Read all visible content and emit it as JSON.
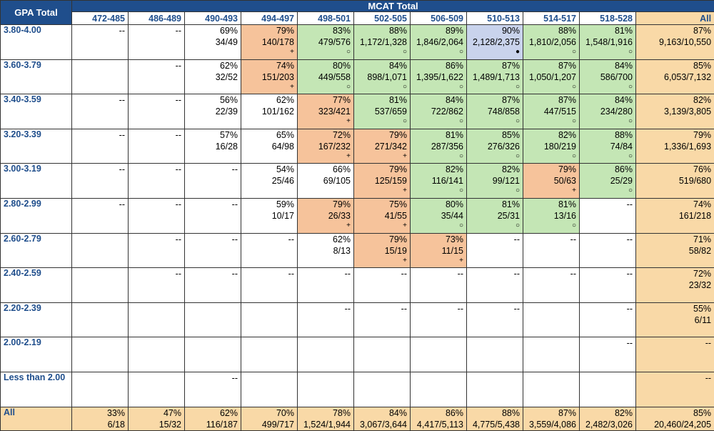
{
  "header": {
    "gpa_title": "GPA Total",
    "mcat_title": "MCAT Total",
    "columns": [
      "472-485",
      "486-489",
      "490-493",
      "494-497",
      "498-501",
      "502-505",
      "506-509",
      "510-513",
      "514-517",
      "518-528",
      "All"
    ]
  },
  "colors": {
    "header": "#1f4e8c",
    "high": "#c4e6b5",
    "mid": "#f6c39b",
    "top": "#c9d3ec",
    "total": "#f9d9a7"
  },
  "rows": [
    {
      "label": "3.80-4.00",
      "cells": [
        {
          "pct": "--",
          "frac": "",
          "marker": "",
          "tone": "plain"
        },
        {
          "pct": "--",
          "frac": "",
          "marker": "",
          "tone": "plain"
        },
        {
          "pct": "69%",
          "frac": "34/49",
          "marker": "",
          "tone": "plain"
        },
        {
          "pct": "79%",
          "frac": "140/178",
          "marker": "+",
          "tone": "mid"
        },
        {
          "pct": "83%",
          "frac": "479/576",
          "marker": "○",
          "tone": "hi"
        },
        {
          "pct": "88%",
          "frac": "1,172/1,328",
          "marker": "○",
          "tone": "hi"
        },
        {
          "pct": "89%",
          "frac": "1,846/2,064",
          "marker": "○",
          "tone": "hi"
        },
        {
          "pct": "90%",
          "frac": "2,128/2,375",
          "marker": "●",
          "tone": "top"
        },
        {
          "pct": "88%",
          "frac": "1,810/2,056",
          "marker": "○",
          "tone": "hi"
        },
        {
          "pct": "81%",
          "frac": "1,548/1,916",
          "marker": "○",
          "tone": "hi"
        },
        {
          "pct": "87%",
          "frac": "9,163/10,550",
          "marker": "",
          "tone": "tot"
        }
      ]
    },
    {
      "label": "3.60-3.79",
      "cells": [
        {
          "pct": "",
          "frac": "",
          "marker": "",
          "tone": "plain"
        },
        {
          "pct": "--",
          "frac": "",
          "marker": "",
          "tone": "plain"
        },
        {
          "pct": "62%",
          "frac": "32/52",
          "marker": "",
          "tone": "plain"
        },
        {
          "pct": "74%",
          "frac": "151/203",
          "marker": "+",
          "tone": "mid"
        },
        {
          "pct": "80%",
          "frac": "449/558",
          "marker": "○",
          "tone": "hi"
        },
        {
          "pct": "84%",
          "frac": "898/1,071",
          "marker": "○",
          "tone": "hi"
        },
        {
          "pct": "86%",
          "frac": "1,395/1,622",
          "marker": "○",
          "tone": "hi"
        },
        {
          "pct": "87%",
          "frac": "1,489/1,713",
          "marker": "○",
          "tone": "hi"
        },
        {
          "pct": "87%",
          "frac": "1,050/1,207",
          "marker": "○",
          "tone": "hi"
        },
        {
          "pct": "84%",
          "frac": "586/700",
          "marker": "○",
          "tone": "hi"
        },
        {
          "pct": "85%",
          "frac": "6,053/7,132",
          "marker": "",
          "tone": "tot"
        }
      ]
    },
    {
      "label": "3.40-3.59",
      "cells": [
        {
          "pct": "--",
          "frac": "",
          "marker": "",
          "tone": "plain"
        },
        {
          "pct": "--",
          "frac": "",
          "marker": "",
          "tone": "plain"
        },
        {
          "pct": "56%",
          "frac": "22/39",
          "marker": "",
          "tone": "plain"
        },
        {
          "pct": "62%",
          "frac": "101/162",
          "marker": "",
          "tone": "plain"
        },
        {
          "pct": "77%",
          "frac": "323/421",
          "marker": "+",
          "tone": "mid"
        },
        {
          "pct": "81%",
          "frac": "537/659",
          "marker": "○",
          "tone": "hi"
        },
        {
          "pct": "84%",
          "frac": "722/862",
          "marker": "○",
          "tone": "hi"
        },
        {
          "pct": "87%",
          "frac": "748/858",
          "marker": "○",
          "tone": "hi"
        },
        {
          "pct": "87%",
          "frac": "447/515",
          "marker": "○",
          "tone": "hi"
        },
        {
          "pct": "84%",
          "frac": "234/280",
          "marker": "○",
          "tone": "hi"
        },
        {
          "pct": "82%",
          "frac": "3,139/3,805",
          "marker": "",
          "tone": "tot"
        }
      ]
    },
    {
      "label": "3.20-3.39",
      "cells": [
        {
          "pct": "--",
          "frac": "",
          "marker": "",
          "tone": "plain"
        },
        {
          "pct": "--",
          "frac": "",
          "marker": "",
          "tone": "plain"
        },
        {
          "pct": "57%",
          "frac": "16/28",
          "marker": "",
          "tone": "plain"
        },
        {
          "pct": "65%",
          "frac": "64/98",
          "marker": "",
          "tone": "plain"
        },
        {
          "pct": "72%",
          "frac": "167/232",
          "marker": "+",
          "tone": "mid"
        },
        {
          "pct": "79%",
          "frac": "271/342",
          "marker": "+",
          "tone": "mid"
        },
        {
          "pct": "81%",
          "frac": "287/356",
          "marker": "○",
          "tone": "hi"
        },
        {
          "pct": "85%",
          "frac": "276/326",
          "marker": "○",
          "tone": "hi"
        },
        {
          "pct": "82%",
          "frac": "180/219",
          "marker": "○",
          "tone": "hi"
        },
        {
          "pct": "88%",
          "frac": "74/84",
          "marker": "○",
          "tone": "hi"
        },
        {
          "pct": "79%",
          "frac": "1,336/1,693",
          "marker": "",
          "tone": "tot"
        }
      ]
    },
    {
      "label": "3.00-3.19",
      "cells": [
        {
          "pct": "--",
          "frac": "",
          "marker": "",
          "tone": "plain"
        },
        {
          "pct": "--",
          "frac": "",
          "marker": "",
          "tone": "plain"
        },
        {
          "pct": "--",
          "frac": "",
          "marker": "",
          "tone": "plain"
        },
        {
          "pct": "54%",
          "frac": "25/46",
          "marker": "",
          "tone": "plain"
        },
        {
          "pct": "66%",
          "frac": "69/105",
          "marker": "",
          "tone": "plain"
        },
        {
          "pct": "79%",
          "frac": "125/159",
          "marker": "+",
          "tone": "mid"
        },
        {
          "pct": "82%",
          "frac": "116/141",
          "marker": "○",
          "tone": "hi"
        },
        {
          "pct": "82%",
          "frac": "99/121",
          "marker": "○",
          "tone": "hi"
        },
        {
          "pct": "79%",
          "frac": "50/63",
          "marker": "+",
          "tone": "mid"
        },
        {
          "pct": "86%",
          "frac": "25/29",
          "marker": "○",
          "tone": "hi"
        },
        {
          "pct": "76%",
          "frac": "519/680",
          "marker": "",
          "tone": "tot"
        }
      ]
    },
    {
      "label": "2.80-2.99",
      "cells": [
        {
          "pct": "--",
          "frac": "",
          "marker": "",
          "tone": "plain"
        },
        {
          "pct": "--",
          "frac": "",
          "marker": "",
          "tone": "plain"
        },
        {
          "pct": "--",
          "frac": "",
          "marker": "",
          "tone": "plain"
        },
        {
          "pct": "59%",
          "frac": "10/17",
          "marker": "",
          "tone": "plain"
        },
        {
          "pct": "79%",
          "frac": "26/33",
          "marker": "+",
          "tone": "mid"
        },
        {
          "pct": "75%",
          "frac": "41/55",
          "marker": "+",
          "tone": "mid"
        },
        {
          "pct": "80%",
          "frac": "35/44",
          "marker": "○",
          "tone": "hi"
        },
        {
          "pct": "81%",
          "frac": "25/31",
          "marker": "○",
          "tone": "hi"
        },
        {
          "pct": "81%",
          "frac": "13/16",
          "marker": "○",
          "tone": "hi"
        },
        {
          "pct": "--",
          "frac": "",
          "marker": "",
          "tone": "plain"
        },
        {
          "pct": "74%",
          "frac": "161/218",
          "marker": "",
          "tone": "tot"
        }
      ]
    },
    {
      "label": "2.60-2.79",
      "cells": [
        {
          "pct": "",
          "frac": "",
          "marker": "",
          "tone": "plain"
        },
        {
          "pct": "--",
          "frac": "",
          "marker": "",
          "tone": "plain"
        },
        {
          "pct": "--",
          "frac": "",
          "marker": "",
          "tone": "plain"
        },
        {
          "pct": "--",
          "frac": "",
          "marker": "",
          "tone": "plain"
        },
        {
          "pct": "62%",
          "frac": "8/13",
          "marker": "",
          "tone": "plain"
        },
        {
          "pct": "79%",
          "frac": "15/19",
          "marker": "+",
          "tone": "mid"
        },
        {
          "pct": "73%",
          "frac": "11/15",
          "marker": "+",
          "tone": "mid"
        },
        {
          "pct": "--",
          "frac": "",
          "marker": "",
          "tone": "plain"
        },
        {
          "pct": "--",
          "frac": "",
          "marker": "",
          "tone": "plain"
        },
        {
          "pct": "--",
          "frac": "",
          "marker": "",
          "tone": "plain"
        },
        {
          "pct": "71%",
          "frac": "58/82",
          "marker": "",
          "tone": "tot"
        }
      ]
    },
    {
      "label": "2.40-2.59",
      "cells": [
        {
          "pct": "",
          "frac": "",
          "marker": "",
          "tone": "plain"
        },
        {
          "pct": "--",
          "frac": "",
          "marker": "",
          "tone": "plain"
        },
        {
          "pct": "--",
          "frac": "",
          "marker": "",
          "tone": "plain"
        },
        {
          "pct": "--",
          "frac": "",
          "marker": "",
          "tone": "plain"
        },
        {
          "pct": "--",
          "frac": "",
          "marker": "",
          "tone": "plain"
        },
        {
          "pct": "--",
          "frac": "",
          "marker": "",
          "tone": "plain"
        },
        {
          "pct": "--",
          "frac": "",
          "marker": "",
          "tone": "plain"
        },
        {
          "pct": "--",
          "frac": "",
          "marker": "",
          "tone": "plain"
        },
        {
          "pct": "--",
          "frac": "",
          "marker": "",
          "tone": "plain"
        },
        {
          "pct": "--",
          "frac": "",
          "marker": "",
          "tone": "plain"
        },
        {
          "pct": "72%",
          "frac": "23/32",
          "marker": "",
          "tone": "tot"
        }
      ]
    },
    {
      "label": "2.20-2.39",
      "cells": [
        {
          "pct": "",
          "frac": "",
          "marker": "",
          "tone": "plain"
        },
        {
          "pct": "",
          "frac": "",
          "marker": "",
          "tone": "plain"
        },
        {
          "pct": "",
          "frac": "",
          "marker": "",
          "tone": "plain"
        },
        {
          "pct": "",
          "frac": "",
          "marker": "",
          "tone": "plain"
        },
        {
          "pct": "--",
          "frac": "",
          "marker": "",
          "tone": "plain"
        },
        {
          "pct": "--",
          "frac": "",
          "marker": "",
          "tone": "plain"
        },
        {
          "pct": "--",
          "frac": "",
          "marker": "",
          "tone": "plain"
        },
        {
          "pct": "--",
          "frac": "",
          "marker": "",
          "tone": "plain"
        },
        {
          "pct": "",
          "frac": "",
          "marker": "",
          "tone": "plain"
        },
        {
          "pct": "--",
          "frac": "",
          "marker": "",
          "tone": "plain"
        },
        {
          "pct": "55%",
          "frac": "6/11",
          "marker": "",
          "tone": "tot"
        }
      ]
    },
    {
      "label": "2.00-2.19",
      "cells": [
        {
          "pct": "",
          "frac": "",
          "marker": "",
          "tone": "plain"
        },
        {
          "pct": "",
          "frac": "",
          "marker": "",
          "tone": "plain"
        },
        {
          "pct": "",
          "frac": "",
          "marker": "",
          "tone": "plain"
        },
        {
          "pct": "",
          "frac": "",
          "marker": "",
          "tone": "plain"
        },
        {
          "pct": "",
          "frac": "",
          "marker": "",
          "tone": "plain"
        },
        {
          "pct": "",
          "frac": "",
          "marker": "",
          "tone": "plain"
        },
        {
          "pct": "",
          "frac": "",
          "marker": "",
          "tone": "plain"
        },
        {
          "pct": "",
          "frac": "",
          "marker": "",
          "tone": "plain"
        },
        {
          "pct": "",
          "frac": "",
          "marker": "",
          "tone": "plain"
        },
        {
          "pct": "--",
          "frac": "",
          "marker": "",
          "tone": "plain"
        },
        {
          "pct": "--",
          "frac": "",
          "marker": "",
          "tone": "tot"
        }
      ]
    },
    {
      "label": "Less than 2.00",
      "cells": [
        {
          "pct": "",
          "frac": "",
          "marker": "",
          "tone": "plain"
        },
        {
          "pct": "",
          "frac": "",
          "marker": "",
          "tone": "plain"
        },
        {
          "pct": "--",
          "frac": "",
          "marker": "",
          "tone": "plain"
        },
        {
          "pct": "",
          "frac": "",
          "marker": "",
          "tone": "plain"
        },
        {
          "pct": "",
          "frac": "",
          "marker": "",
          "tone": "plain"
        },
        {
          "pct": "",
          "frac": "",
          "marker": "",
          "tone": "plain"
        },
        {
          "pct": "",
          "frac": "",
          "marker": "",
          "tone": "plain"
        },
        {
          "pct": "",
          "frac": "",
          "marker": "",
          "tone": "plain"
        },
        {
          "pct": "",
          "frac": "",
          "marker": "",
          "tone": "plain"
        },
        {
          "pct": "",
          "frac": "",
          "marker": "",
          "tone": "plain"
        },
        {
          "pct": "--",
          "frac": "",
          "marker": "",
          "tone": "tot"
        }
      ]
    }
  ],
  "totals": {
    "label": "All",
    "cells": [
      {
        "pct": "33%",
        "frac": "6/18"
      },
      {
        "pct": "47%",
        "frac": "15/32"
      },
      {
        "pct": "62%",
        "frac": "116/187"
      },
      {
        "pct": "70%",
        "frac": "499/717"
      },
      {
        "pct": "78%",
        "frac": "1,524/1,944"
      },
      {
        "pct": "84%",
        "frac": "3,067/3,644"
      },
      {
        "pct": "86%",
        "frac": "4,417/5,113"
      },
      {
        "pct": "88%",
        "frac": "4,775/5,438"
      },
      {
        "pct": "87%",
        "frac": "3,559/4,086"
      },
      {
        "pct": "82%",
        "frac": "2,482/3,026"
      },
      {
        "pct": "85%",
        "frac": "20,460/24,205"
      }
    ]
  }
}
